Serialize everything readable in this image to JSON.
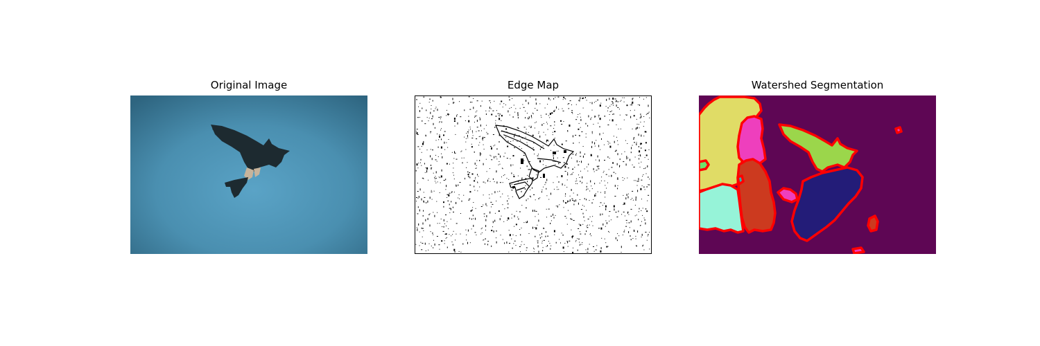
{
  "figure": {
    "panels": [
      {
        "title": "Original Image"
      },
      {
        "title": "Edge Map"
      },
      {
        "title": "Watershed Segmentation"
      }
    ]
  },
  "colors": {
    "sky_center": "#5aa3c6",
    "sky_edge": "#2e6580",
    "bird": "#1d2a30",
    "edge_bg": "#ffffff",
    "edge_ink": "#000000",
    "seg_background": "#5e0654",
    "seg_yellow": "#e0dc66",
    "seg_magenta": "#ee3fbd",
    "seg_green_bird": "#9bd64b",
    "seg_navy": "#231c78",
    "seg_orange": "#cc3a1f",
    "seg_mint": "#96f3d8",
    "seg_teal": "#2fb3b0",
    "seg_lime": "#6ee36c",
    "seg_boundary": "#ff0000"
  }
}
